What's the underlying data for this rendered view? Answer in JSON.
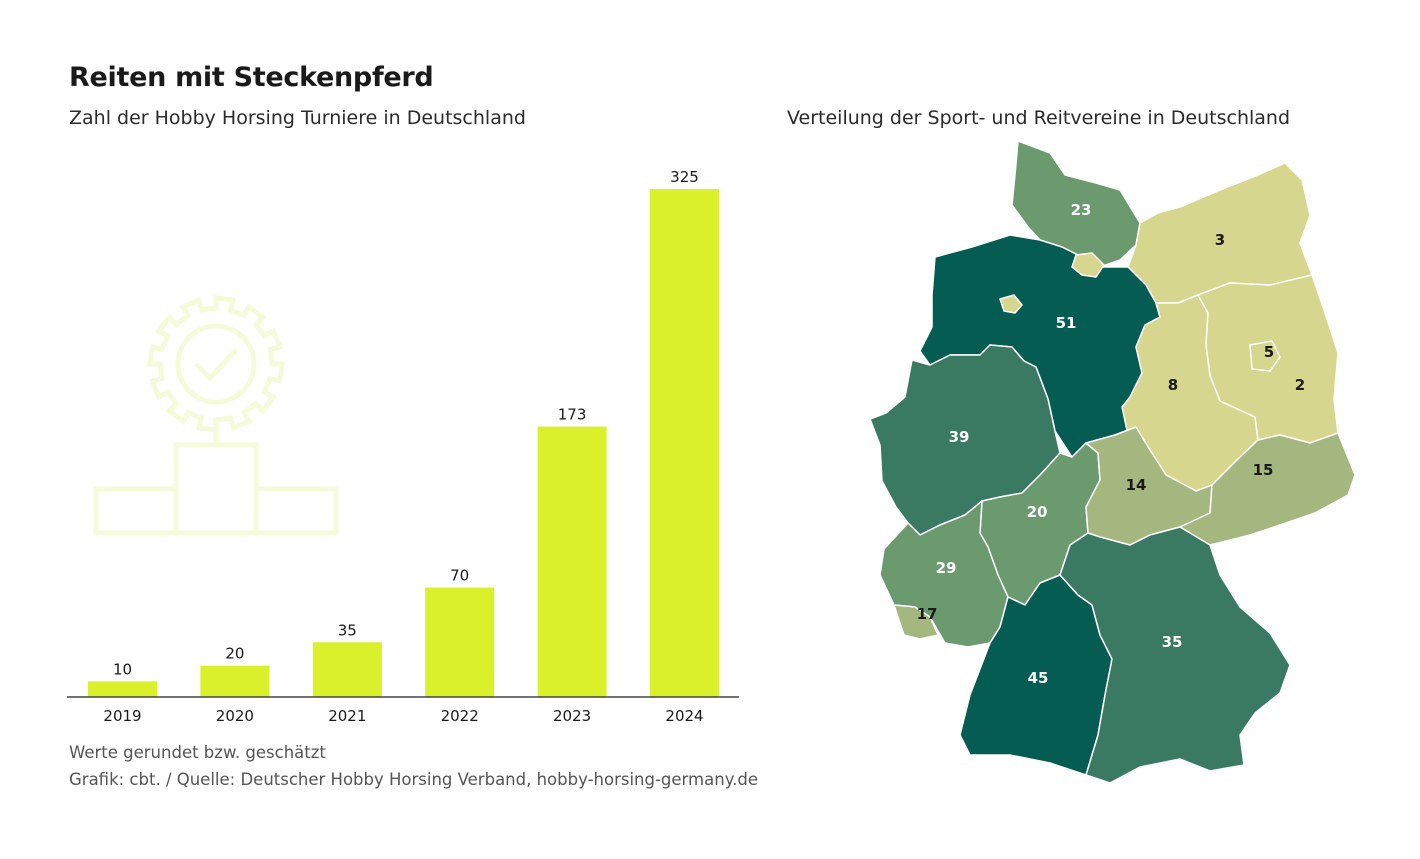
{
  "title": "Reiten mit Steckenpferd",
  "chart_data": [
    {
      "type": "bar",
      "title": "Zahl der Hobby Horsing Turniere in Deutschland",
      "categories": [
        "2019",
        "2020",
        "2021",
        "2022",
        "2023",
        "2024"
      ],
      "values": [
        10,
        20,
        35,
        70,
        173,
        325
      ],
      "ylim": [
        0,
        325
      ],
      "grid": false,
      "color": "#d9f02a"
    },
    {
      "type": "choropleth",
      "title": "Verteilung der Sport- und Reitvereine in Deutschland",
      "regions": [
        {
          "id": "sh",
          "value": 23
        },
        {
          "id": "mv",
          "value": 3
        },
        {
          "id": "hh",
          "value": ""
        },
        {
          "id": "hb",
          "value": ""
        },
        {
          "id": "ni",
          "value": 51
        },
        {
          "id": "st",
          "value": 8
        },
        {
          "id": "bb",
          "value": 2
        },
        {
          "id": "be",
          "value": 5
        },
        {
          "id": "nw",
          "value": 39
        },
        {
          "id": "he",
          "value": 20
        },
        {
          "id": "th",
          "value": 14
        },
        {
          "id": "sn",
          "value": 15
        },
        {
          "id": "rp",
          "value": 29
        },
        {
          "id": "sl",
          "value": 17
        },
        {
          "id": "bw",
          "value": 45
        },
        {
          "id": "by",
          "value": 35
        }
      ],
      "colors": {
        "light": "#d7d68e",
        "light-mid": "#a3b77f",
        "mid": "#6b9a6f",
        "dark-mid": "#3b7a62",
        "dark": "#045c52"
      }
    }
  ],
  "footnote": "Werte gerundet bzw. geschätzt",
  "source": "Grafik: cbt. / Quelle: Deutscher Hobby Horsing Verband, hobby-horsing-germany.de"
}
